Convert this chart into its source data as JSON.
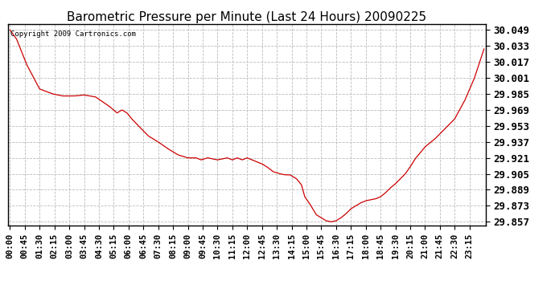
{
  "title": "Barometric Pressure per Minute (Last 24 Hours) 20090225",
  "copyright": "Copyright 2009 Cartronics.com",
  "line_color": "#cc0000",
  "background_color": "#ffffff",
  "grid_color": "#bbbbbb",
  "title_fontsize": 11,
  "ylabel_fontsize": 9,
  "xlabel_fontsize": 7.5,
  "ylim": [
    29.853,
    30.055
  ],
  "yticks": [
    29.857,
    29.873,
    29.889,
    29.905,
    29.921,
    29.937,
    29.953,
    29.969,
    29.985,
    30.001,
    30.017,
    30.033,
    30.049
  ],
  "xtick_labels": [
    "00:00",
    "00:45",
    "01:30",
    "02:15",
    "03:00",
    "03:45",
    "04:30",
    "05:15",
    "06:00",
    "06:45",
    "07:30",
    "08:15",
    "09:00",
    "09:45",
    "10:30",
    "11:15",
    "12:00",
    "12:45",
    "13:30",
    "14:15",
    "15:00",
    "15:45",
    "16:30",
    "17:15",
    "18:00",
    "18:45",
    "19:30",
    "20:15",
    "21:00",
    "21:45",
    "22:30",
    "23:15"
  ],
  "ctl_t": [
    0,
    20,
    50,
    90,
    130,
    160,
    195,
    225,
    260,
    300,
    315,
    325,
    340,
    355,
    370,
    390,
    420,
    450,
    480,
    510,
    540,
    565,
    580,
    600,
    630,
    645,
    660,
    675,
    690,
    705,
    720,
    735,
    750,
    765,
    780,
    800,
    820,
    835,
    850,
    870,
    885,
    895,
    910,
    930,
    950,
    960,
    975,
    990,
    1005,
    1020,
    1035,
    1050,
    1065,
    1080,
    1095,
    1110,
    1125,
    1140,
    1155,
    1170,
    1185,
    1200,
    1215,
    1230,
    1260,
    1290,
    1320,
    1350,
    1380,
    1410,
    1439
  ],
  "ctl_y": [
    30.049,
    30.04,
    30.015,
    29.99,
    29.985,
    29.983,
    29.983,
    29.984,
    29.982,
    29.973,
    29.969,
    29.966,
    29.969,
    29.966,
    29.96,
    29.953,
    29.943,
    29.937,
    29.93,
    29.924,
    29.921,
    29.921,
    29.919,
    29.921,
    29.919,
    29.92,
    29.921,
    29.919,
    29.921,
    29.919,
    29.921,
    29.919,
    29.917,
    29.915,
    29.912,
    29.907,
    29.905,
    29.904,
    29.904,
    29.9,
    29.894,
    29.882,
    29.875,
    29.864,
    29.86,
    29.858,
    29.857,
    29.858,
    29.861,
    29.865,
    29.87,
    29.873,
    29.876,
    29.878,
    29.879,
    29.88,
    29.882,
    29.886,
    29.891,
    29.895,
    29.9,
    29.905,
    29.912,
    29.92,
    29.932,
    29.94,
    29.95,
    29.96,
    29.978,
    30.001,
    30.03
  ]
}
